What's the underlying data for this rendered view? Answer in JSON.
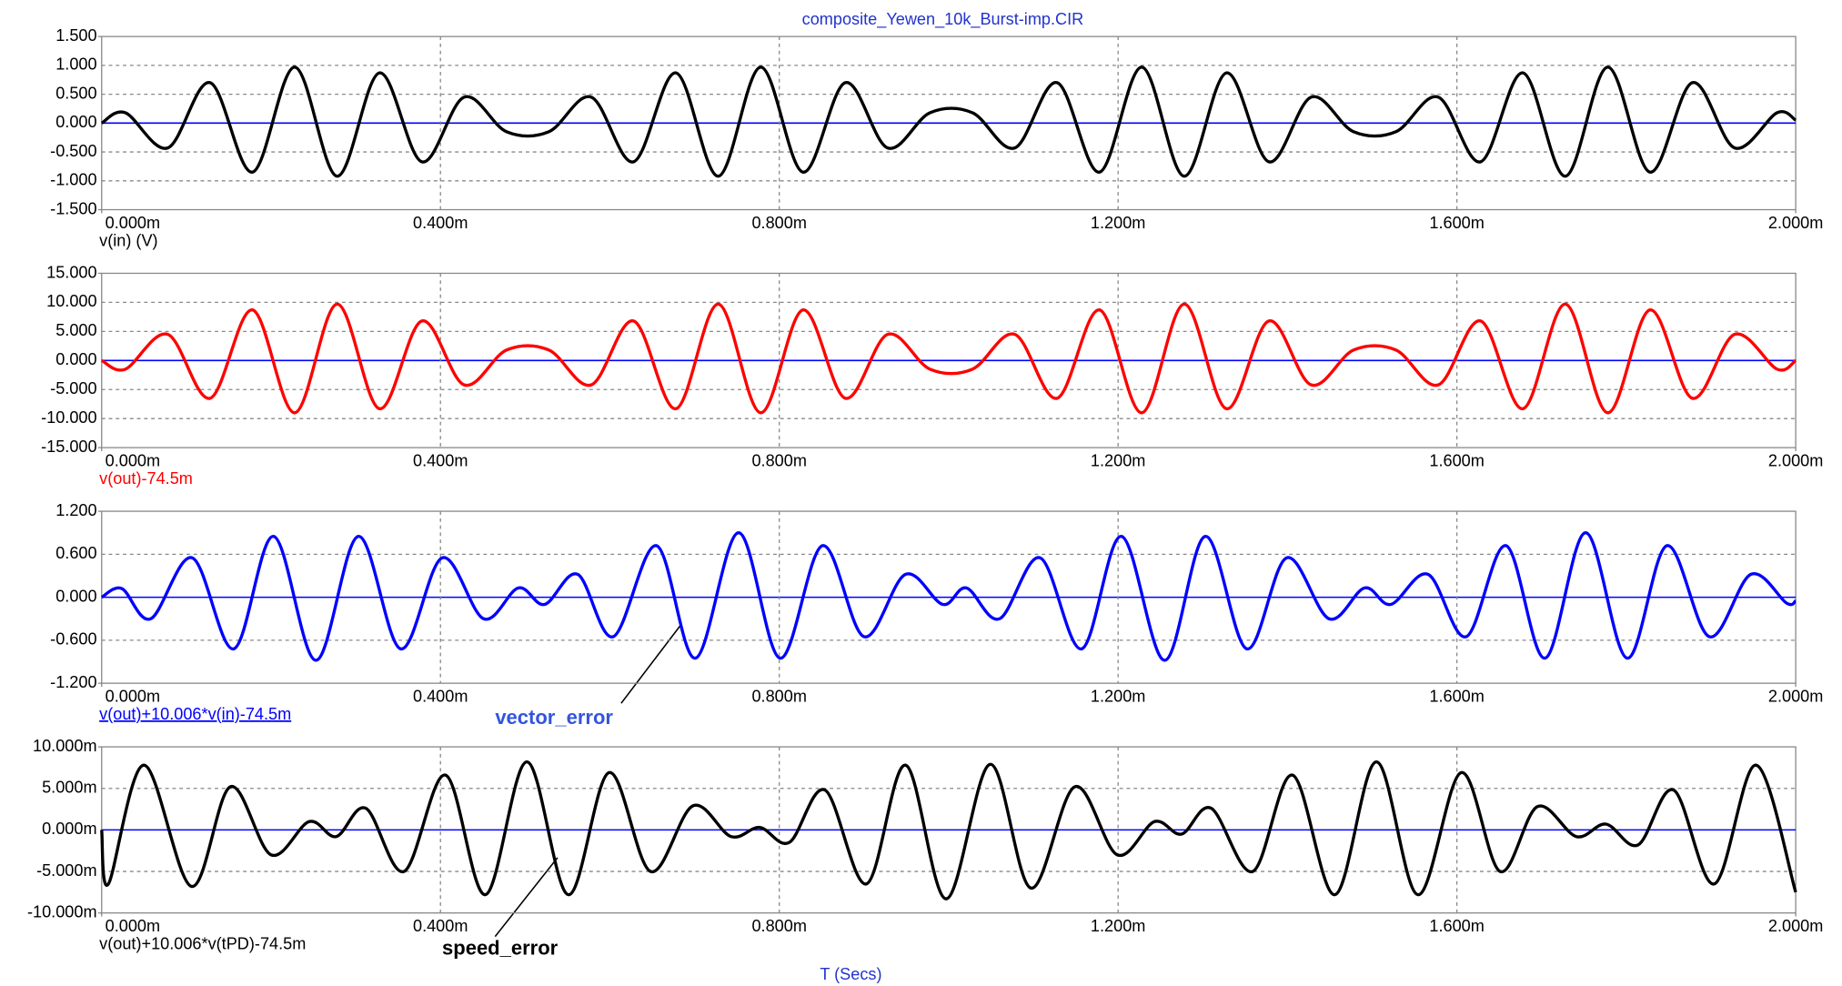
{
  "chart_data": [
    {
      "type": "line",
      "title": "composite_Yewen_10k_Burst-imp.CIR",
      "x": [
        0,
        0.028,
        0.078,
        0.128,
        0.178,
        0.228,
        0.278,
        0.328,
        0.378,
        0.428,
        0.478,
        0.528,
        0.578,
        0.628,
        0.678,
        0.728,
        0.778,
        0.828,
        0.878,
        0.928,
        0.978,
        1.028,
        1.078,
        1.128,
        1.178,
        1.228,
        1.278,
        1.328,
        1.378,
        1.428,
        1.478,
        1.528,
        1.578,
        1.628,
        1.678,
        1.728,
        1.778,
        1.828,
        1.878,
        1.928,
        1.978,
        2.0
      ],
      "series": [
        {
          "name": "v(in) (V)",
          "color": "#000000",
          "values": [
            0,
            0.18,
            -0.43,
            0.7,
            -0.85,
            0.97,
            -0.92,
            0.87,
            -0.67,
            0.45,
            -0.15,
            -0.15,
            0.45,
            -0.67,
            0.87,
            -0.92,
            0.97,
            -0.85,
            0.7,
            -0.43,
            0.18,
            0.18,
            -0.43,
            0.7,
            -0.85,
            0.97,
            -0.92,
            0.87,
            -0.67,
            0.45,
            -0.15,
            -0.15,
            0.45,
            -0.67,
            0.87,
            -0.92,
            0.97,
            -0.85,
            0.7,
            -0.43,
            0.18,
            0.05
          ]
        }
      ],
      "xlim": [
        0,
        2
      ],
      "xticks": [
        {
          "value": 0,
          "label": "0.000m"
        },
        {
          "value": 0.4,
          "label": "0.400m"
        },
        {
          "value": 0.8,
          "label": "0.800m"
        },
        {
          "value": 1.2,
          "label": "1.200m"
        },
        {
          "value": 1.6,
          "label": "1.600m"
        },
        {
          "value": 2,
          "label": "2.000m"
        }
      ],
      "ylim": [
        -1.5,
        1.5
      ],
      "yticks": [
        {
          "value": 1.5,
          "label": "1.500"
        },
        {
          "value": 1,
          "label": "1.000"
        },
        {
          "value": 0.5,
          "label": "0.500"
        },
        {
          "value": 0,
          "label": "0.000"
        },
        {
          "value": -0.5,
          "label": "-0.500"
        },
        {
          "value": -1,
          "label": "-1.000"
        },
        {
          "value": -1.5,
          "label": "-1.500"
        }
      ],
      "grid": true
    },
    {
      "type": "line",
      "x": [
        0,
        0.028,
        0.078,
        0.128,
        0.178,
        0.228,
        0.278,
        0.328,
        0.378,
        0.428,
        0.478,
        0.528,
        0.578,
        0.628,
        0.678,
        0.728,
        0.778,
        0.828,
        0.878,
        0.928,
        0.978,
        1.028,
        1.078,
        1.128,
        1.178,
        1.228,
        1.278,
        1.328,
        1.378,
        1.428,
        1.478,
        1.528,
        1.578,
        1.628,
        1.678,
        1.728,
        1.778,
        1.828,
        1.878,
        1.928,
        1.978,
        2.0
      ],
      "series": [
        {
          "name": "v(out)-74.5m",
          "color": "#ff0000",
          "values": [
            0,
            -1.5,
            4.5,
            -6.5,
            8.7,
            -9,
            9.7,
            -8.3,
            6.8,
            -4.2,
            1.8,
            1.8,
            -4.2,
            6.8,
            -8.3,
            9.7,
            -9,
            8.7,
            -6.5,
            4.5,
            -1.5,
            -1.5,
            4.5,
            -6.5,
            8.7,
            -9,
            9.7,
            -8.3,
            6.8,
            -4.2,
            1.8,
            1.8,
            -4.2,
            6.8,
            -8.3,
            9.7,
            -9,
            8.7,
            -6.5,
            4.5,
            -1.5,
            0
          ]
        }
      ],
      "xlim": [
        0,
        2
      ],
      "xticks": [
        {
          "value": 0,
          "label": "0.000m"
        },
        {
          "value": 0.4,
          "label": "0.400m"
        },
        {
          "value": 0.8,
          "label": "0.800m"
        },
        {
          "value": 1.2,
          "label": "1.200m"
        },
        {
          "value": 1.6,
          "label": "1.600m"
        },
        {
          "value": 2,
          "label": "2.000m"
        }
      ],
      "ylim": [
        -15,
        15
      ],
      "yticks": [
        {
          "value": 15,
          "label": "15.000"
        },
        {
          "value": 10,
          "label": "10.000"
        },
        {
          "value": 5,
          "label": "5.000"
        },
        {
          "value": 0,
          "label": "0.000"
        },
        {
          "value": -5,
          "label": "-5.000"
        },
        {
          "value": -10,
          "label": "-10.000"
        },
        {
          "value": -15,
          "label": "-15.000"
        }
      ],
      "grid": true
    },
    {
      "type": "line",
      "annotation": "vector_error",
      "x": [
        0,
        0.024,
        0.058,
        0.107,
        0.156,
        0.203,
        0.253,
        0.303,
        0.353,
        0.402,
        0.451,
        0.492,
        0.523,
        0.562,
        0.604,
        0.655,
        0.701,
        0.752,
        0.801,
        0.851,
        0.9,
        0.949,
        0.993,
        1.021,
        1.06,
        1.108,
        1.157,
        1.204,
        1.255,
        1.303,
        1.352,
        1.399,
        1.449,
        1.491,
        1.522,
        1.566,
        1.611,
        1.658,
        1.704,
        1.752,
        1.801,
        1.848,
        1.898,
        1.947,
        1.989,
        2.0
      ],
      "series": [
        {
          "name": "v(out)+10.006*v(in)-74.5m",
          "color": "#0000ff",
          "values": [
            0,
            0.12,
            -0.3,
            0.55,
            -0.72,
            0.85,
            -0.88,
            0.85,
            -0.72,
            0.55,
            -0.3,
            0.13,
            -0.1,
            0.32,
            -0.55,
            0.72,
            -0.85,
            0.9,
            -0.85,
            0.72,
            -0.55,
            0.32,
            -0.1,
            0.13,
            -0.3,
            0.55,
            -0.72,
            0.85,
            -0.88,
            0.85,
            -0.72,
            0.55,
            -0.3,
            0.13,
            -0.1,
            0.32,
            -0.55,
            0.72,
            -0.85,
            0.9,
            -0.85,
            0.72,
            -0.55,
            0.32,
            -0.08,
            -0.05
          ]
        }
      ],
      "xlim": [
        0,
        2
      ],
      "xticks": [
        {
          "value": 0,
          "label": "0.000m"
        },
        {
          "value": 0.4,
          "label": "0.400m"
        },
        {
          "value": 0.8,
          "label": "0.800m"
        },
        {
          "value": 1.2,
          "label": "1.200m"
        },
        {
          "value": 1.6,
          "label": "1.600m"
        },
        {
          "value": 2,
          "label": "2.000m"
        }
      ],
      "ylim": [
        -1.2,
        1.2
      ],
      "yticks": [
        {
          "value": 1.2,
          "label": "1.200"
        },
        {
          "value": 0.6,
          "label": "0.600"
        },
        {
          "value": 0,
          "label": "0.000"
        },
        {
          "value": -0.6,
          "label": "-0.600"
        },
        {
          "value": -1.2,
          "label": "-1.200"
        }
      ],
      "grid": true
    },
    {
      "type": "line",
      "annotation": "speed_error",
      "xlabel": "T (Secs)",
      "x": [
        0,
        0.008,
        0.05,
        0.106,
        0.152,
        0.2,
        0.245,
        0.277,
        0.312,
        0.357,
        0.406,
        0.453,
        0.502,
        0.551,
        0.599,
        0.648,
        0.698,
        0.743,
        0.777,
        0.812,
        0.854,
        0.903,
        0.949,
        0.997,
        1.049,
        1.097,
        1.149,
        1.199,
        1.243,
        1.275,
        1.31,
        1.359,
        1.406,
        1.456,
        1.505,
        1.554,
        1.605,
        1.651,
        1.695,
        1.741,
        1.776,
        1.814,
        1.856,
        1.904,
        1.953,
        2.0
      ],
      "series": [
        {
          "name": "v(out)+10.006*v(tPD)-74.5m",
          "color": "#000000",
          "values": [
            0,
            -0.0065,
            0.0078,
            -0.0068,
            0.0052,
            -0.003,
            0.001,
            -0.0008,
            0.0026,
            -0.005,
            0.0066,
            -0.0078,
            0.0082,
            -0.0078,
            0.0069,
            -0.005,
            0.0029,
            -0.0008,
            0.0003,
            -0.0015,
            0.0048,
            -0.0065,
            0.0078,
            -0.0083,
            0.0079,
            -0.007,
            0.0052,
            -0.003,
            0.001,
            -0.0005,
            0.0026,
            -0.005,
            0.0066,
            -0.0078,
            0.0082,
            -0.0078,
            0.0069,
            -0.005,
            0.0028,
            -0.0008,
            0.0007,
            -0.0018,
            0.0048,
            -0.0065,
            0.0078,
            -0.0075
          ]
        }
      ],
      "xlim": [
        0,
        2
      ],
      "xticks": [
        {
          "value": 0,
          "label": "0.000m"
        },
        {
          "value": 0.4,
          "label": "0.400m"
        },
        {
          "value": 0.8,
          "label": "0.800m"
        },
        {
          "value": 1.2,
          "label": "1.200m"
        },
        {
          "value": 1.6,
          "label": "1.600m"
        },
        {
          "value": 2,
          "label": "2.000m"
        }
      ],
      "ylim": [
        -0.01,
        0.01
      ],
      "yticks": [
        {
          "value": 0.01,
          "label": "10.000m"
        },
        {
          "value": 0.005,
          "label": "5.000m"
        },
        {
          "value": 0,
          "label": "0.000m"
        },
        {
          "value": -0.005,
          "label": "-5.000m"
        },
        {
          "value": -0.01,
          "label": "-10.000m"
        }
      ],
      "grid": true
    }
  ]
}
